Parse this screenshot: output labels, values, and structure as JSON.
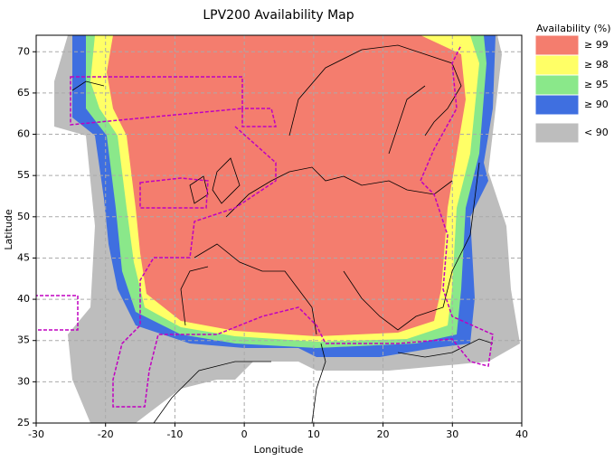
{
  "chart_data": {
    "type": "map",
    "title": "LPV200 Availability Map",
    "x_label": "Longitude",
    "y_label": "Latitude",
    "xlim": [
      -30,
      40
    ],
    "ylim": [
      25,
      72
    ],
    "xticks": [
      -30,
      -20,
      -10,
      0,
      10,
      20,
      30,
      40
    ],
    "yticks": [
      25,
      30,
      35,
      40,
      45,
      50,
      55,
      60,
      65,
      70
    ],
    "grid": true,
    "legend": {
      "title": "Availability (%)",
      "items": [
        {
          "label": "≥ 99",
          "color": "#f47d6e"
        },
        {
          "label": "≥ 98",
          "color": "#ffff66"
        },
        {
          "label": "≥ 95",
          "color": "#8ae88a"
        },
        {
          "label": "≥ 90",
          "color": "#3f6fe0"
        },
        {
          "label": "< 90",
          "color": "#bdbdbd"
        }
      ]
    }
  }
}
